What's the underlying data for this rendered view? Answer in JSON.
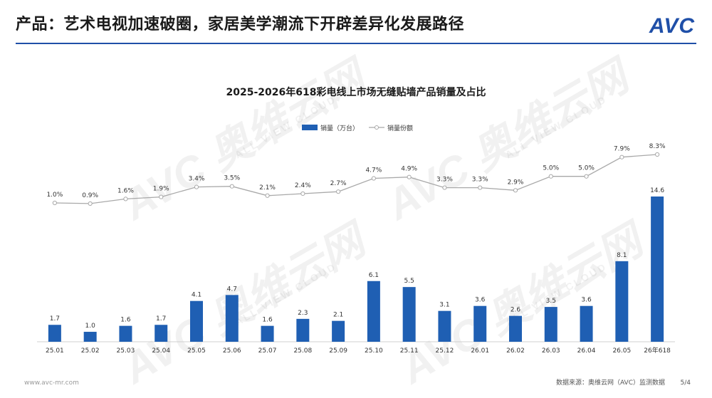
{
  "header": {
    "title": "产品：艺术电视加速破圈，家居美学潮流下开辟差异化发展路径",
    "logo": "AVC"
  },
  "footer": {
    "website": "www.avc-mr.com",
    "source": "数据来源：奥维云网（AVC）监测数据",
    "page": "5/4"
  },
  "watermark": {
    "brand": "AVC 奥维云网",
    "tagline": "ALL VIEW CLOUD"
  },
  "chart_data": {
    "type": "bar",
    "title": "2025-2026年618彩电线上市场无缝贴墙产品销量及占比",
    "categories": [
      "25.01",
      "25.02",
      "25.03",
      "25.04",
      "25.05",
      "25.06",
      "25.07",
      "25.08",
      "25.09",
      "25.10",
      "25.11",
      "25.12",
      "26.01",
      "26.02",
      "26.03",
      "26.04",
      "26.05",
      "26年618"
    ],
    "series": [
      {
        "name": "销量（万台）",
        "kind": "bar",
        "color": "#1f5fb3",
        "values": [
          1.7,
          1.0,
          1.6,
          1.7,
          4.1,
          4.7,
          1.6,
          2.3,
          2.1,
          6.1,
          5.5,
          3.1,
          3.6,
          2.6,
          3.5,
          3.6,
          8.1,
          14.6
        ],
        "labels": [
          "1.7",
          "1.0",
          "1.6",
          "1.7",
          "4.1",
          "4.7",
          "1.6",
          "2.3",
          "2.1",
          "6.1",
          "5.5",
          "3.1",
          "3.6",
          "2.6",
          "3.5",
          "3.6",
          "8.1",
          "14.6"
        ]
      },
      {
        "name": "销量份额",
        "kind": "line",
        "color": "#a9a9a9",
        "values": [
          1.0,
          0.9,
          1.6,
          1.9,
          3.4,
          3.5,
          2.1,
          2.4,
          2.7,
          4.7,
          4.9,
          3.3,
          3.3,
          2.9,
          5.0,
          5.0,
          7.9,
          8.3
        ],
        "labels": [
          "1.0%",
          "0.9%",
          "1.6%",
          "1.9%",
          "3.4%",
          "3.5%",
          "2.1%",
          "2.4%",
          "2.7%",
          "4.7%",
          "4.9%",
          "3.3%",
          "3.3%",
          "2.9%",
          "5.0%",
          "5.0%",
          "7.9%",
          "8.3%"
        ]
      }
    ],
    "legend_position": "top-center",
    "grid": false
  }
}
